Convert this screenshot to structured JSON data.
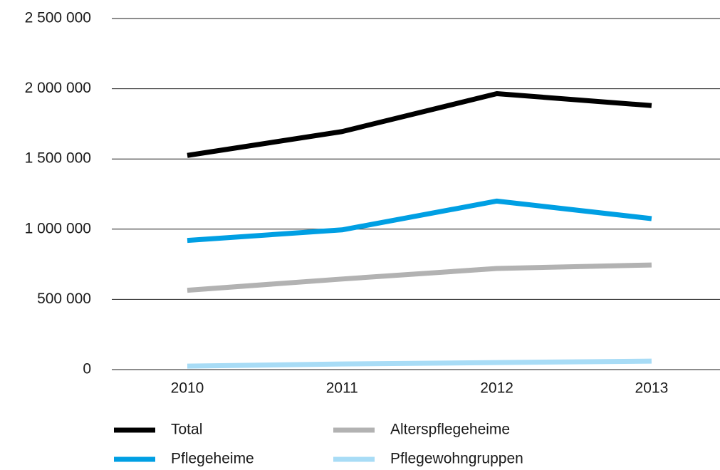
{
  "chart_data": {
    "type": "line",
    "categories": [
      "2010",
      "2011",
      "2012",
      "2013"
    ],
    "series": [
      {
        "name": "Total",
        "color": "#000000",
        "values": [
          1525000,
          1695000,
          1965000,
          1880000
        ]
      },
      {
        "name": "Pflegeheime",
        "color": "#009fe3",
        "values": [
          920000,
          995000,
          1200000,
          1075000
        ]
      },
      {
        "name": "Alterspflegeheime",
        "color": "#b2b2b2",
        "values": [
          565000,
          645000,
          720000,
          745000
        ]
      },
      {
        "name": "Pflegewohngruppen",
        "color": "#a8dcf6",
        "values": [
          25000,
          40000,
          50000,
          60000
        ]
      }
    ],
    "ylim": [
      0,
      2500000
    ],
    "yticks": [
      0,
      {
        "value": 500000,
        "label": "500 000"
      },
      {
        "value": 1000000,
        "label": "1 000 000"
      },
      {
        "value": 1500000,
        "label": "1 500 000"
      },
      {
        "value": 2000000,
        "label": "2 000 000"
      },
      {
        "value": 2500000,
        "label": "2 500 000"
      }
    ],
    "grid": true
  }
}
